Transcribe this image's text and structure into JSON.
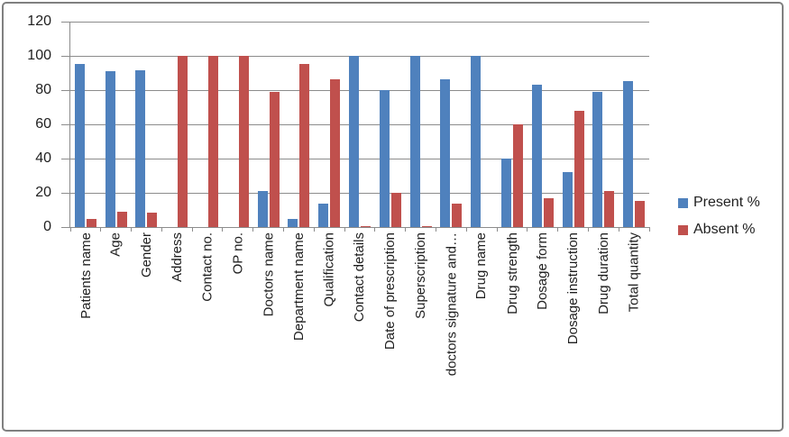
{
  "chart_data": {
    "type": "bar",
    "title": "",
    "xlabel": "",
    "ylabel": "",
    "ylim": [
      0,
      120
    ],
    "ytick_step": 20,
    "grid": "horizontal",
    "legend_position": "right",
    "categories": [
      "Patients name",
      "Age",
      "Gender",
      "Address",
      "Contact no.",
      "OP no.",
      "Doctors name",
      "Department name",
      "Qualification",
      "Contact details",
      "Date of prescription",
      "Superscription",
      "doctors signature and…",
      "Drug name",
      "Drug strength",
      "Dosage form",
      "Dosage instruction",
      "Drug duration",
      "Total quantity"
    ],
    "series": [
      {
        "name": "Present %",
        "color": "#4F81BD",
        "values": [
          95.5,
          91,
          91.5,
          0,
          0,
          0,
          21,
          4.5,
          13.5,
          100,
          80,
          100,
          86.5,
          100,
          40,
          83,
          32,
          79,
          85
        ]
      },
      {
        "name": "Absent %",
        "color": "#C0504D",
        "values": [
          4.5,
          9,
          8.5,
          100,
          100,
          100,
          79,
          95.5,
          86.5,
          0.5,
          20,
          0.5,
          13.5,
          0,
          60,
          17,
          68,
          21,
          15
        ]
      }
    ],
    "y_tick_labels": [
      "120",
      "100",
      "80",
      "60",
      "40",
      "20",
      "0"
    ]
  },
  "colors": {
    "present": "#4F81BD",
    "absent": "#C0504D",
    "gridline": "#8c8c8c",
    "axis": "#8c8c8c",
    "text": "#1f1f1f",
    "frame_border": "#808080"
  }
}
